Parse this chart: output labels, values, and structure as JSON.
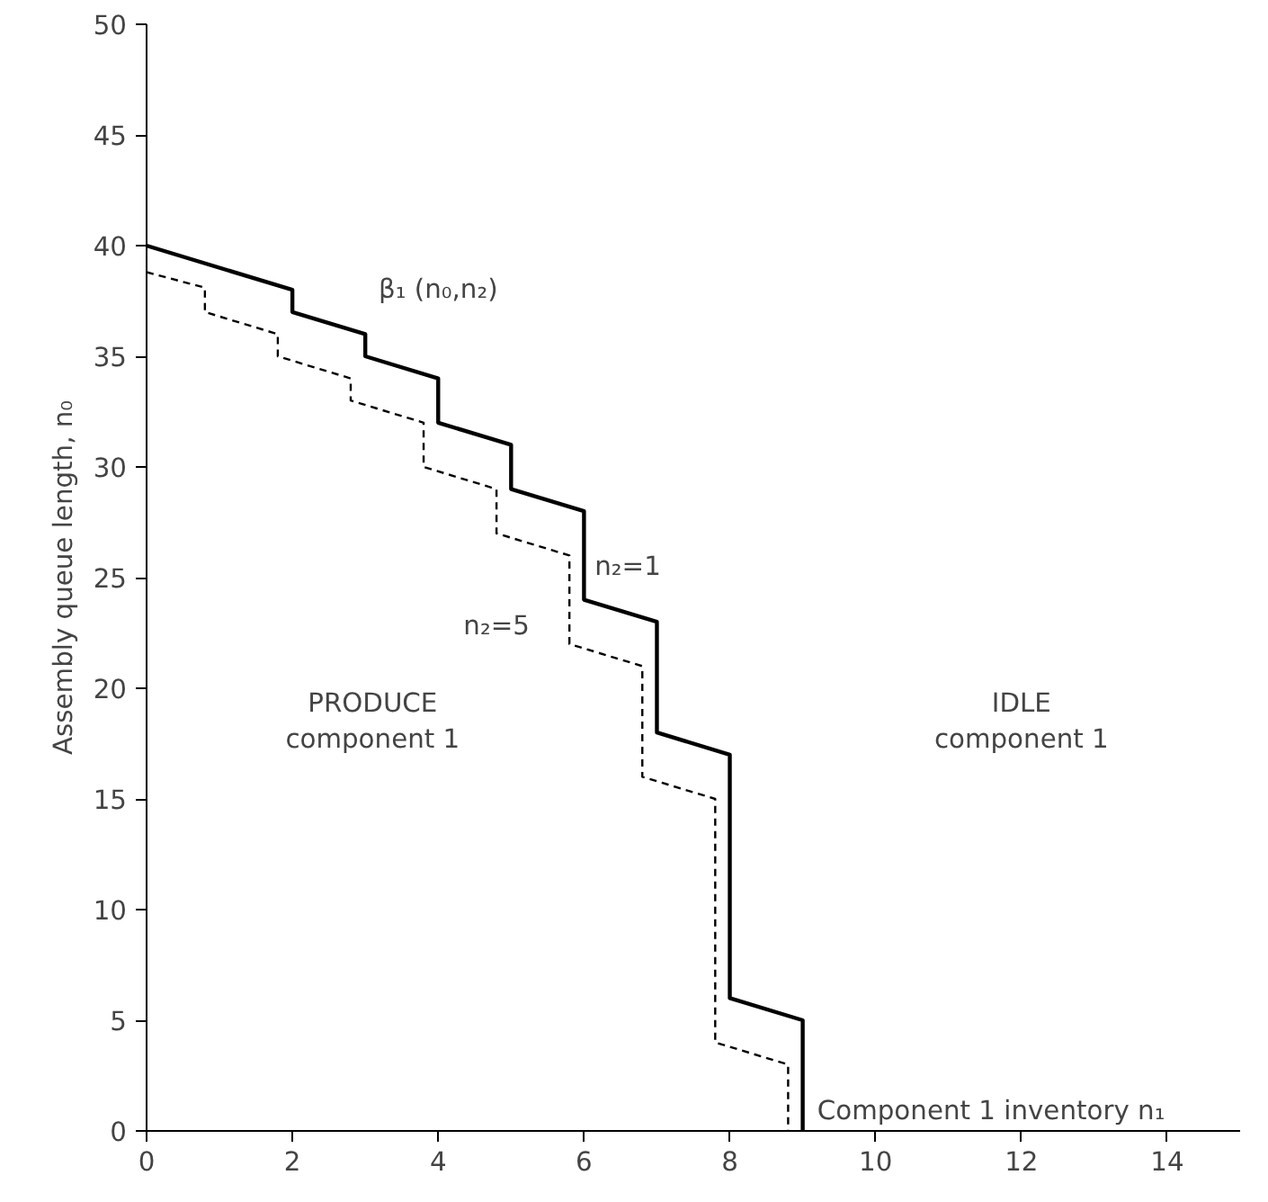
{
  "chart_data": {
    "type": "line",
    "xlabel": "Component 1 inventory n₁",
    "ylabel": "Assembly queue length, n₀",
    "xlim": [
      0,
      15
    ],
    "xticks": [
      0,
      2,
      4,
      6,
      8,
      10,
      12,
      14
    ],
    "ylim": [
      0,
      50
    ],
    "yticks": [
      0,
      5,
      10,
      15,
      20,
      25,
      30,
      35,
      40,
      45,
      50
    ],
    "grid": false,
    "marker": "none",
    "series": [
      {
        "color": "#000000",
        "line_style": "solid",
        "x": [
          0,
          2,
          2,
          3,
          3,
          4,
          4,
          5,
          5,
          6,
          6,
          7,
          7,
          8,
          8,
          9,
          9
        ],
        "values": [
          40,
          38,
          37,
          36,
          35,
          34,
          32,
          31,
          29,
          28,
          24,
          23,
          18,
          17,
          6,
          5,
          0
        ]
      },
      {
        "color": "#000000",
        "line_style": "dashed",
        "x": [
          0,
          0.8,
          0.8,
          1.8,
          1.8,
          2.8,
          2.8,
          3.8,
          3.8,
          4.8,
          4.8,
          5.8,
          5.8,
          6.8,
          6.8,
          7.8,
          7.8,
          8.8,
          8.8
        ],
        "values": [
          38.8,
          38.1,
          37,
          36,
          35,
          34,
          33,
          32,
          30,
          29,
          27,
          26,
          22,
          21,
          16,
          15,
          4,
          3,
          0
        ]
      }
    ],
    "annotations": [
      "β₁ (n₀,n₂)",
      "n₂=1",
      "n₂=5",
      "PRODUCE\ncomponent 1",
      "IDLE\ncomponent 1"
    ]
  }
}
